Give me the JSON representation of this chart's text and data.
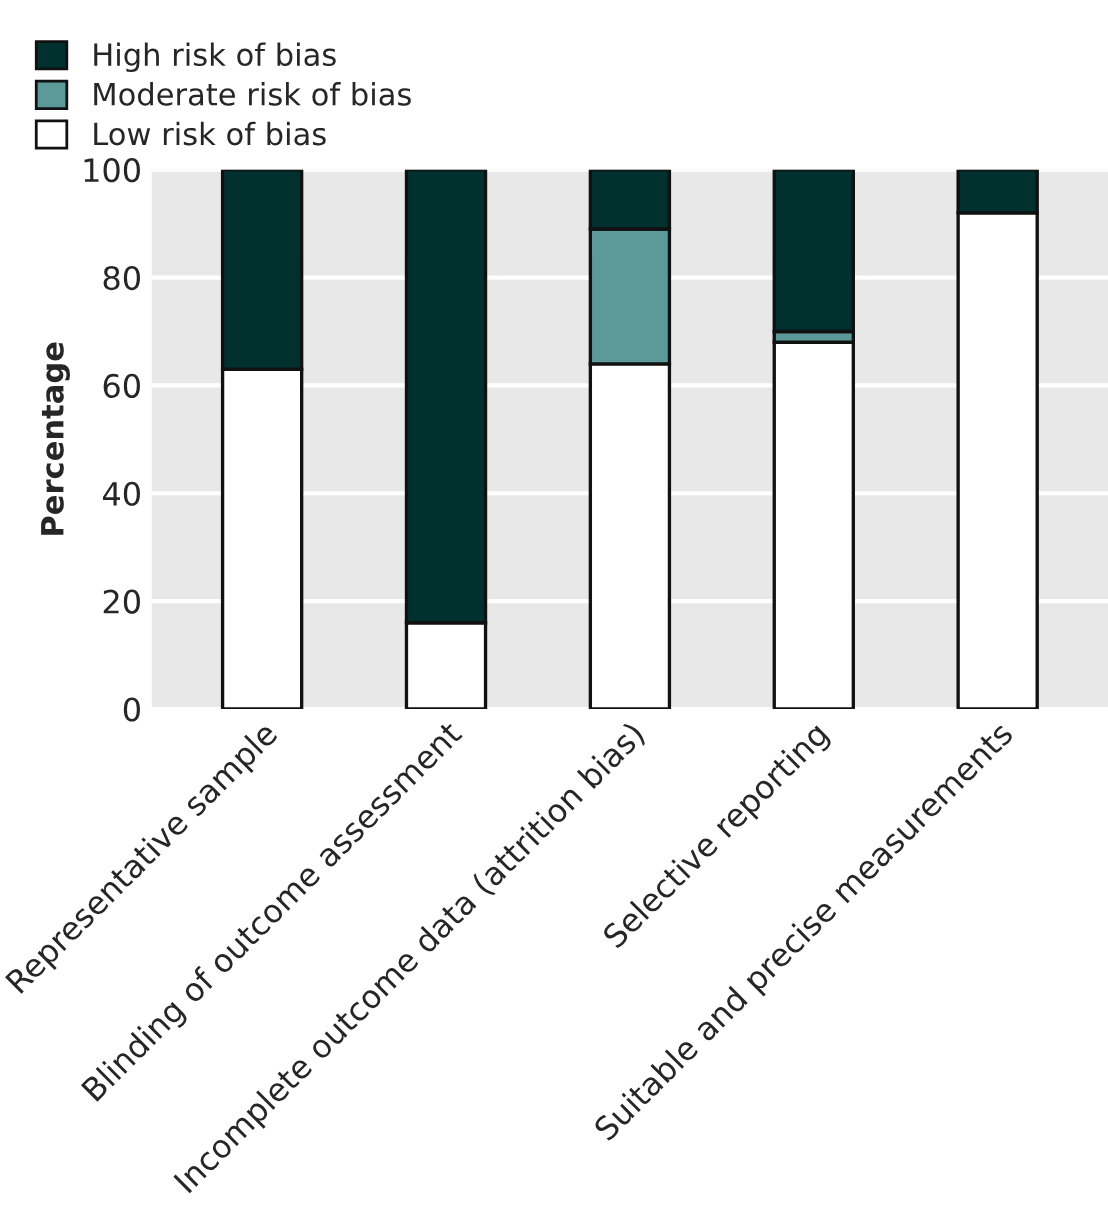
{
  "chart_data": {
    "type": "bar",
    "stacked": true,
    "ylabel": "Percentage",
    "categories": [
      "Representative sample",
      "Blinding of outcome assessment",
      "Incomplete outcome data (attrition bias)",
      "Selective reporting",
      "Suitable and precise measurements"
    ],
    "series": [
      {
        "name": "Low risk of bias",
        "color": "#ffffff",
        "values": [
          63,
          16,
          64,
          68,
          92
        ]
      },
      {
        "name": "Moderate risk of bias",
        "color": "#5b9a99",
        "values": [
          null,
          null,
          25,
          2,
          null
        ]
      },
      {
        "name": "High risk of bias",
        "color": "#00312f",
        "values": [
          37,
          84,
          11,
          30,
          8
        ]
      }
    ],
    "ylim": [
      0,
      100
    ],
    "yticks": [
      0,
      20,
      40,
      60,
      80,
      100
    ],
    "grid": "y",
    "legend": "top left"
  }
}
